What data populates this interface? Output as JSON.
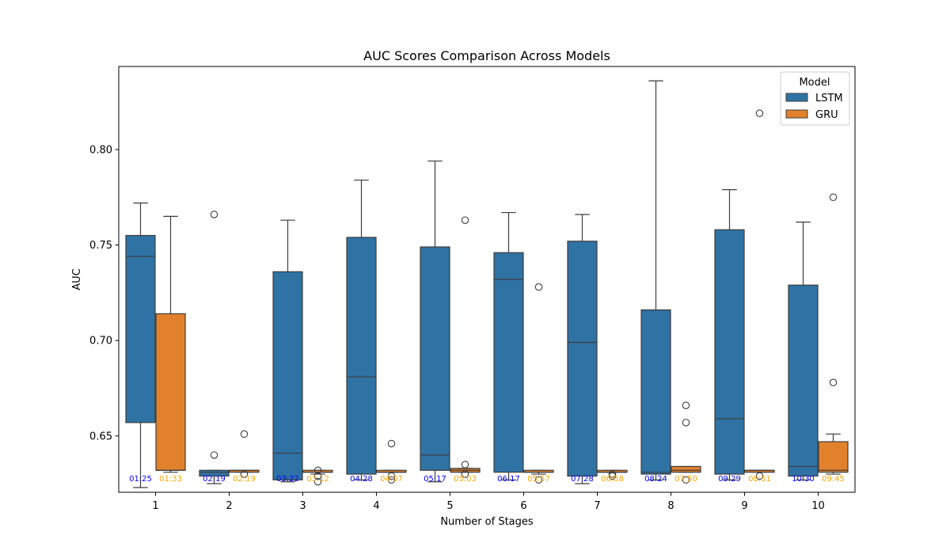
{
  "chart_data": {
    "type": "box",
    "title": "AUC Scores Comparison Across Models",
    "xlabel": "Number of Stages",
    "ylabel": "AUC",
    "ylim": [
      0.6205,
      0.8435
    ],
    "yticks": [
      0.65,
      0.7,
      0.75,
      0.8
    ],
    "ytick_labels": [
      "0.65",
      "0.70",
      "0.75",
      "0.80"
    ],
    "categories": [
      "1",
      "2",
      "3",
      "4",
      "5",
      "6",
      "7",
      "8",
      "9",
      "10"
    ],
    "legend": {
      "title": "Model",
      "position": "top-right"
    },
    "series": [
      {
        "name": "LSTM",
        "color": "#2f72a4",
        "boxes": [
          {
            "whislo": 0.623,
            "q1": 0.657,
            "med": 0.744,
            "q3": 0.755,
            "whishi": 0.772,
            "fliers": []
          },
          {
            "whislo": 0.625,
            "q1": 0.629,
            "med": 0.631,
            "q3": 0.632,
            "whishi": 0.632,
            "fliers": [
              0.766,
              0.64
            ]
          },
          {
            "whislo": 0.626,
            "q1": 0.627,
            "med": 0.641,
            "q3": 0.736,
            "whishi": 0.763,
            "fliers": []
          },
          {
            "whislo": 0.627,
            "q1": 0.63,
            "med": 0.681,
            "q3": 0.754,
            "whishi": 0.784,
            "fliers": []
          },
          {
            "whislo": 0.626,
            "q1": 0.632,
            "med": 0.64,
            "q3": 0.749,
            "whishi": 0.794,
            "fliers": []
          },
          {
            "whislo": 0.627,
            "q1": 0.631,
            "med": 0.732,
            "q3": 0.746,
            "whishi": 0.767,
            "fliers": []
          },
          {
            "whislo": 0.625,
            "q1": 0.629,
            "med": 0.699,
            "q3": 0.752,
            "whishi": 0.766,
            "fliers": []
          },
          {
            "whislo": 0.627,
            "q1": 0.63,
            "med": 0.631,
            "q3": 0.716,
            "whishi": 0.836,
            "fliers": []
          },
          {
            "whislo": 0.627,
            "q1": 0.63,
            "med": 0.659,
            "q3": 0.758,
            "whishi": 0.779,
            "fliers": []
          },
          {
            "whislo": 0.627,
            "q1": 0.629,
            "med": 0.634,
            "q3": 0.729,
            "whishi": 0.762,
            "fliers": []
          }
        ],
        "time_labels": [
          "01:25",
          "02:19",
          "03:22",
          "04:28",
          "05:17",
          "06:17",
          "07:28",
          "08:24",
          "09:29",
          "10:30"
        ],
        "time_label_color": "#0000ff"
      },
      {
        "name": "GRU",
        "color": "#e1812c",
        "boxes": [
          {
            "whislo": 0.631,
            "q1": 0.632,
            "med": 0.632,
            "q3": 0.714,
            "whishi": 0.765,
            "fliers": []
          },
          {
            "whislo": 0.631,
            "q1": 0.631,
            "med": 0.632,
            "q3": 0.632,
            "whishi": 0.632,
            "fliers": [
              0.651,
              0.63
            ]
          },
          {
            "whislo": 0.63,
            "q1": 0.631,
            "med": 0.631,
            "q3": 0.632,
            "whishi": 0.632,
            "fliers": [
              0.632,
              0.629,
              0.626
            ]
          },
          {
            "whislo": 0.631,
            "q1": 0.631,
            "med": 0.631,
            "q3": 0.632,
            "whishi": 0.632,
            "fliers": [
              0.646,
              0.629,
              0.627
            ]
          },
          {
            "whislo": 0.631,
            "q1": 0.631,
            "med": 0.632,
            "q3": 0.633,
            "whishi": 0.633,
            "fliers": [
              0.763,
              0.635,
              0.63
            ]
          },
          {
            "whislo": 0.63,
            "q1": 0.631,
            "med": 0.631,
            "q3": 0.632,
            "whishi": 0.632,
            "fliers": [
              0.728,
              0.627
            ]
          },
          {
            "whislo": 0.631,
            "q1": 0.631,
            "med": 0.631,
            "q3": 0.632,
            "whishi": 0.632,
            "fliers": [
              0.63,
              0.629
            ]
          },
          {
            "whislo": 0.631,
            "q1": 0.631,
            "med": 0.632,
            "q3": 0.634,
            "whishi": 0.634,
            "fliers": [
              0.666,
              0.657,
              0.627
            ]
          },
          {
            "whislo": 0.631,
            "q1": 0.631,
            "med": 0.632,
            "q3": 0.632,
            "whishi": 0.632,
            "fliers": [
              0.819,
              0.629
            ]
          },
          {
            "whislo": 0.63,
            "q1": 0.631,
            "med": 0.632,
            "q3": 0.647,
            "whishi": 0.651,
            "fliers": [
              0.775,
              0.678
            ]
          }
        ],
        "time_labels": [
          "01:33",
          "02:19",
          "03:12",
          "04:07",
          "05:03",
          "05:57",
          "06:58",
          "07:50",
          "08:51",
          "09:45"
        ],
        "time_label_color": "#ffa500"
      }
    ],
    "grid": false
  }
}
